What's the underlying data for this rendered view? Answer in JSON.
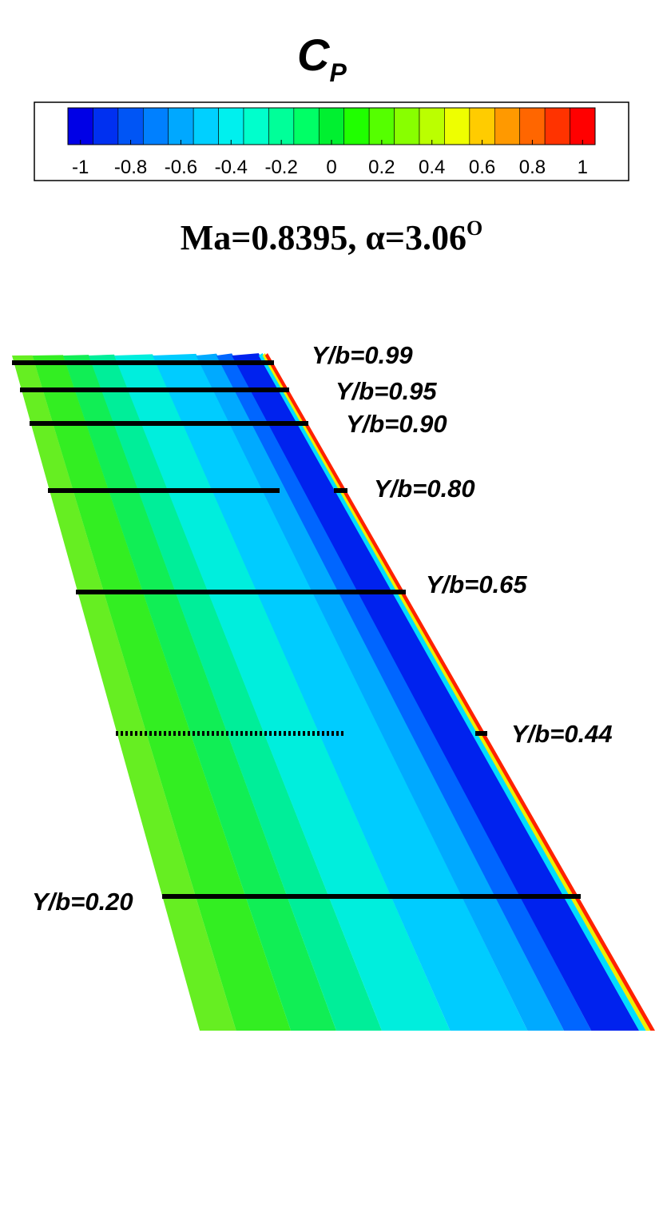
{
  "title": {
    "main": "C",
    "sub": "P"
  },
  "colorbar": {
    "range": [
      -1.05,
      1.05
    ],
    "ticks": [
      -1,
      -0.8,
      -0.6,
      -0.4,
      -0.2,
      0,
      0.2,
      0.4,
      0.6,
      0.8,
      1
    ],
    "colors": [
      "#0000e6",
      "#0030f0",
      "#0055f5",
      "#0080ff",
      "#00a8ff",
      "#00d0ff",
      "#00f0ee",
      "#00ffcc",
      "#00ff99",
      "#00ff66",
      "#00f030",
      "#20ff00",
      "#55ff00",
      "#88ff00",
      "#bbff00",
      "#eeff00",
      "#ffcc00",
      "#ff9900",
      "#ff6600",
      "#ff3300",
      "#ff0000"
    ]
  },
  "subtitle": {
    "text": "Ma=0.8395, α=3.06",
    "sup": "O"
  },
  "sections": [
    {
      "label": "Y/b=0.99"
    },
    {
      "label": "Y/b=0.95"
    },
    {
      "label": "Y/b=0.90"
    },
    {
      "label": "Y/b=0.80"
    },
    {
      "label": "Y/b=0.65"
    },
    {
      "label": "Y/b=0.44"
    },
    {
      "label": "Y/b=0.20"
    }
  ]
}
